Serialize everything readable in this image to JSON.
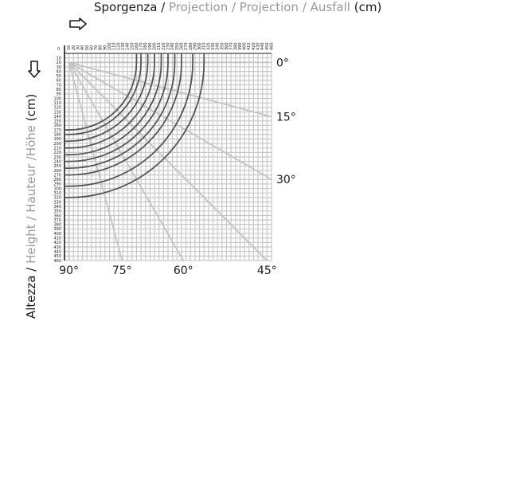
{
  "chart_data": {
    "type": "diagram",
    "title_x": {
      "first": "Sporgenza / ",
      "rest": "Projection / Projection / Ausfall",
      "unit": " (cm)"
    },
    "title_y": {
      "first": "Altezza / ",
      "rest": "Height / Hauteur /Höhe",
      "unit": " (cm)"
    },
    "x_axis": {
      "min": 0,
      "max": 460,
      "step": 10,
      "zero_label": "0"
    },
    "y_axis": {
      "min": 0,
      "max": 460,
      "step": 10
    },
    "pivot": {
      "x": 10,
      "y": 20
    },
    "arcs": {
      "radii": [
        150,
        160,
        175,
        190,
        205,
        220,
        235,
        250,
        275,
        300
      ]
    },
    "angle_lines": [
      {
        "label": "0°",
        "angle": 0
      },
      {
        "label": "15°",
        "angle": 15
      },
      {
        "label": "30°",
        "angle": 30
      },
      {
        "label": "45°",
        "angle": 45
      },
      {
        "label": "60°",
        "angle": 60
      },
      {
        "label": "75°",
        "angle": 75
      },
      {
        "label": "90°",
        "angle": 90
      }
    ],
    "colors": {
      "grid": "#c8c8c8",
      "arc": "#555555",
      "angle_line": "#c4c4c4",
      "text": "#1a1a1a",
      "muted": "#9a9a9a"
    }
  }
}
